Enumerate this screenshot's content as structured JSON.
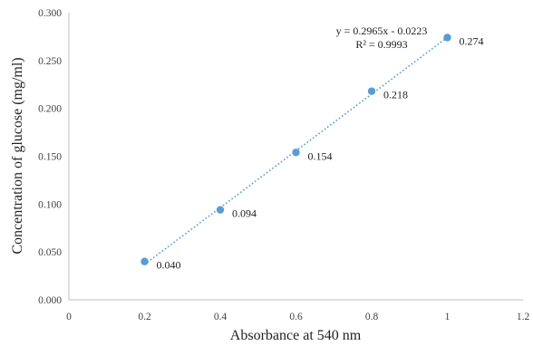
{
  "chart_data": {
    "type": "scatter",
    "title": "",
    "xlabel": "Absorbance at 540 nm",
    "ylabel": "Concentration of glucose (mg/ml)",
    "xlim": [
      0,
      1.2
    ],
    "ylim": [
      0,
      0.3
    ],
    "x_ticks": [
      "0",
      "0.2",
      "0.4",
      "0.6",
      "0.8",
      "1",
      "1.2"
    ],
    "y_ticks": [
      "0.000",
      "0.050",
      "0.100",
      "0.150",
      "0.200",
      "0.250",
      "0.300"
    ],
    "grid": false,
    "legend": "none",
    "series": [
      {
        "x": [
          0.2,
          0.4,
          0.6,
          0.8,
          1.0
        ],
        "y": [
          0.04,
          0.094,
          0.154,
          0.218,
          0.274
        ],
        "labels": [
          "0.040",
          "0.094",
          "0.154",
          "0.218",
          "0.274"
        ],
        "color": "#5B9BD5"
      }
    ],
    "trendline": {
      "type": "linear",
      "style": "dotted",
      "color": "#5B9BD5",
      "slope": 0.2965,
      "intercept": -0.0223,
      "equation_text": "y = 0.2965x - 0.0223",
      "r2_text": "R² = 0.9993"
    }
  }
}
